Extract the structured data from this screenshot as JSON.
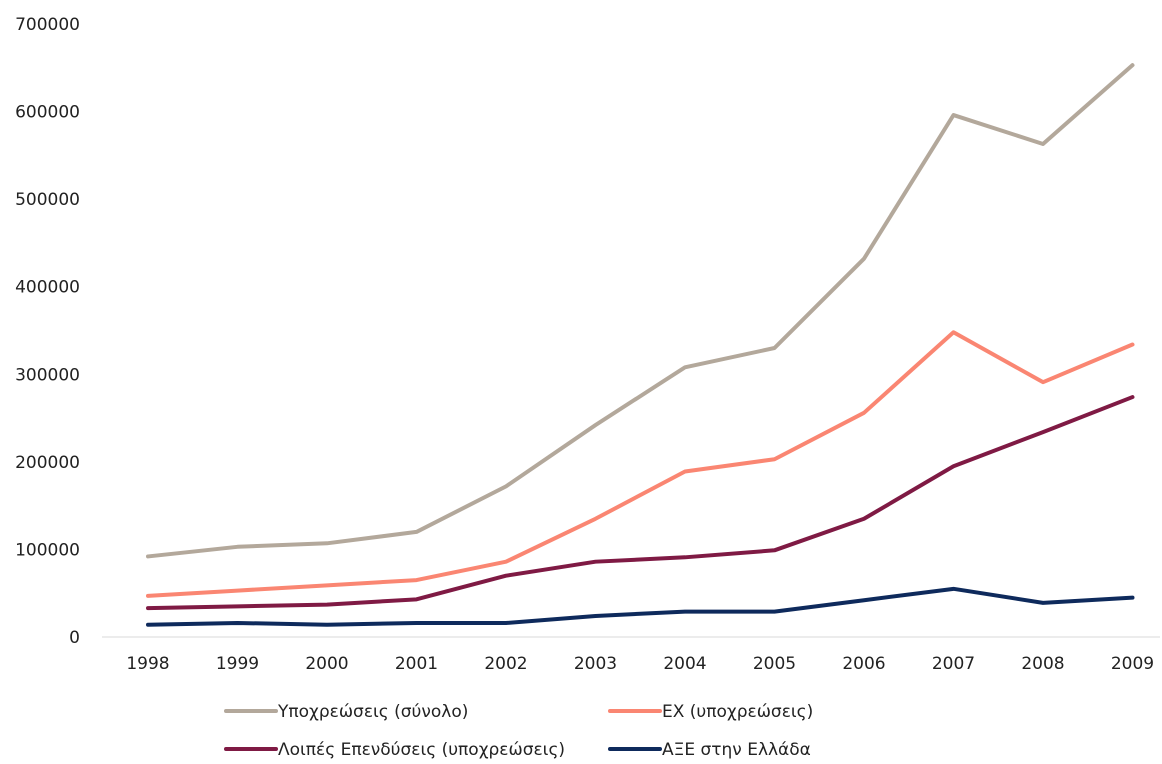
{
  "chart_data": {
    "type": "line",
    "title": "",
    "xlabel": "",
    "ylabel": "",
    "categories": [
      "1998",
      "1999",
      "2000",
      "2001",
      "2002",
      "2003",
      "2004",
      "2005",
      "2006",
      "2007",
      "2008",
      "2009"
    ],
    "ylim": [
      0,
      700000
    ],
    "yticks": [
      0,
      100000,
      200000,
      300000,
      400000,
      500000,
      600000,
      700000
    ],
    "ytick_labels": [
      "0",
      "100000",
      "200000",
      "300000",
      "400000",
      "500000",
      "600000",
      "700000"
    ],
    "grid": false,
    "legend_position": "bottom",
    "series": [
      {
        "name": "Υποχρεώσεις  (σύνολο)",
        "color": "#b3a89b",
        "values": [
          92000,
          103000,
          107000,
          120000,
          172000,
          242000,
          308000,
          330000,
          432000,
          596000,
          563000,
          653000
        ]
      },
      {
        "name": "ΕΧ (υποχρεώσεις)",
        "color": "#fa8672",
        "values": [
          47000,
          53000,
          59000,
          65000,
          86000,
          135000,
          189000,
          203000,
          256000,
          348000,
          291000,
          334000
        ]
      },
      {
        "name": "Λοιπές Επενδύσεις (υποχρεώσεις)",
        "color": "#7f1a44",
        "values": [
          33000,
          35000,
          37000,
          43000,
          70000,
          86000,
          91000,
          99000,
          135000,
          195000,
          234000,
          274000
        ]
      },
      {
        "name": "ΑΞΕ στην Ελλάδα",
        "color": "#0e2a5c",
        "values": [
          14000,
          16000,
          14000,
          16000,
          16000,
          24000,
          29000,
          29000,
          42000,
          55000,
          39000,
          45000
        ]
      }
    ]
  }
}
